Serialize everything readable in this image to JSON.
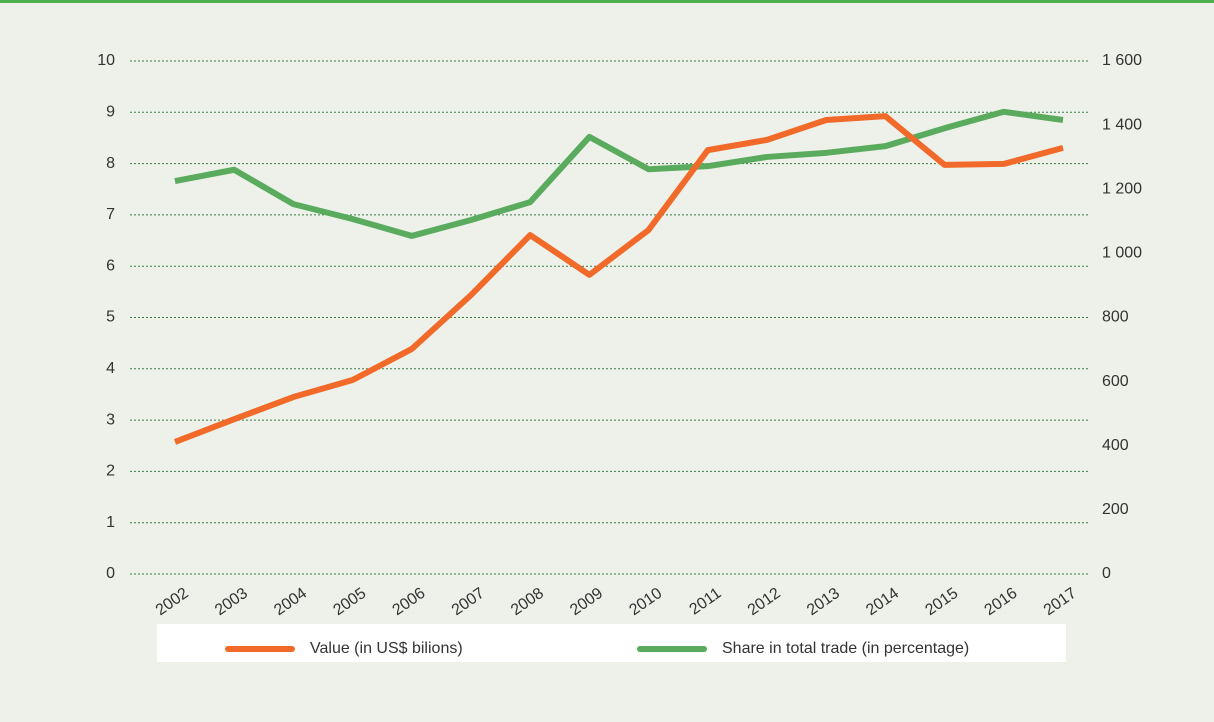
{
  "chart_data": {
    "type": "line",
    "categories": [
      "2002",
      "2003",
      "2004",
      "2005",
      "2006",
      "2007",
      "2008",
      "2009",
      "2010",
      "2011",
      "2012",
      "2013",
      "2014",
      "2015",
      "2016",
      "2017"
    ],
    "series": [
      {
        "name": "Value (in US$ bilions)",
        "color": "#f26a2a",
        "axis": "y2",
        "values": [
          412,
          483,
          552,
          605,
          702,
          870,
          1057,
          933,
          1073,
          1322,
          1354,
          1416,
          1428,
          1276,
          1279,
          1329
        ]
      },
      {
        "name": "Share in total trade (in percentage)",
        "color": "#5aab5d",
        "values": [
          7.66,
          7.88,
          7.21,
          6.92,
          6.59,
          6.9,
          7.25,
          8.52,
          7.89,
          7.95,
          8.13,
          8.21,
          8.34,
          8.69,
          9.01,
          8.85
        ]
      }
    ],
    "ylim": [
      0,
      10
    ],
    "yticks": [
      0,
      1,
      2,
      3,
      4,
      5,
      6,
      7,
      8,
      9,
      10
    ],
    "y2lim": [
      0,
      1600
    ],
    "y2ticks": [
      0,
      200,
      400,
      600,
      800,
      {
        "value": 1000,
        "label": "1 000"
      },
      {
        "value": 1200,
        "label": "1 200"
      },
      {
        "value": 1400,
        "label": "1 400"
      },
      {
        "value": 1600,
        "label": "1 600"
      }
    ],
    "grid": true,
    "legend": "bottom"
  }
}
